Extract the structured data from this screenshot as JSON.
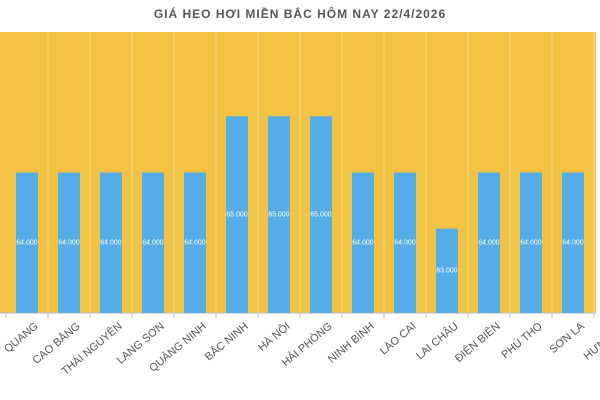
{
  "chart_data": {
    "type": "bar",
    "title": "GIÁ HEO HƠI MIỀN BẮC HÔM NAY 22/4/2026",
    "categories": [
      "QUANG",
      "CAO BẰNG",
      "THÁI NGUYÊN",
      "LẠNG SƠN",
      "QUẢNG NINH",
      "BẮC NINH",
      "HÀ NỘI",
      "HẢI PHÒNG",
      "NINH BÌNH",
      "LÀO CAI",
      "LAI CHÂU",
      "ĐIỆN BIÊN",
      "PHÚ THỌ",
      "SƠN LA",
      "HƯNG YÊ"
    ],
    "values": [
      64000,
      64000,
      64000,
      64000,
      64000,
      65000,
      65000,
      65000,
      64000,
      64000,
      63000,
      64000,
      64000,
      64000,
      64000
    ],
    "value_labels": [
      "64.000",
      "64.000",
      "64.000",
      "64.000",
      "64.000",
      "65.000",
      "65.000",
      "65.000",
      "64.000",
      "64.000",
      "63.000",
      "64.000",
      "64.000",
      "64.000",
      "64.000"
    ],
    "color": "#55ace6",
    "background": "#f2c244",
    "ylim": [
      61500,
      66500
    ]
  }
}
